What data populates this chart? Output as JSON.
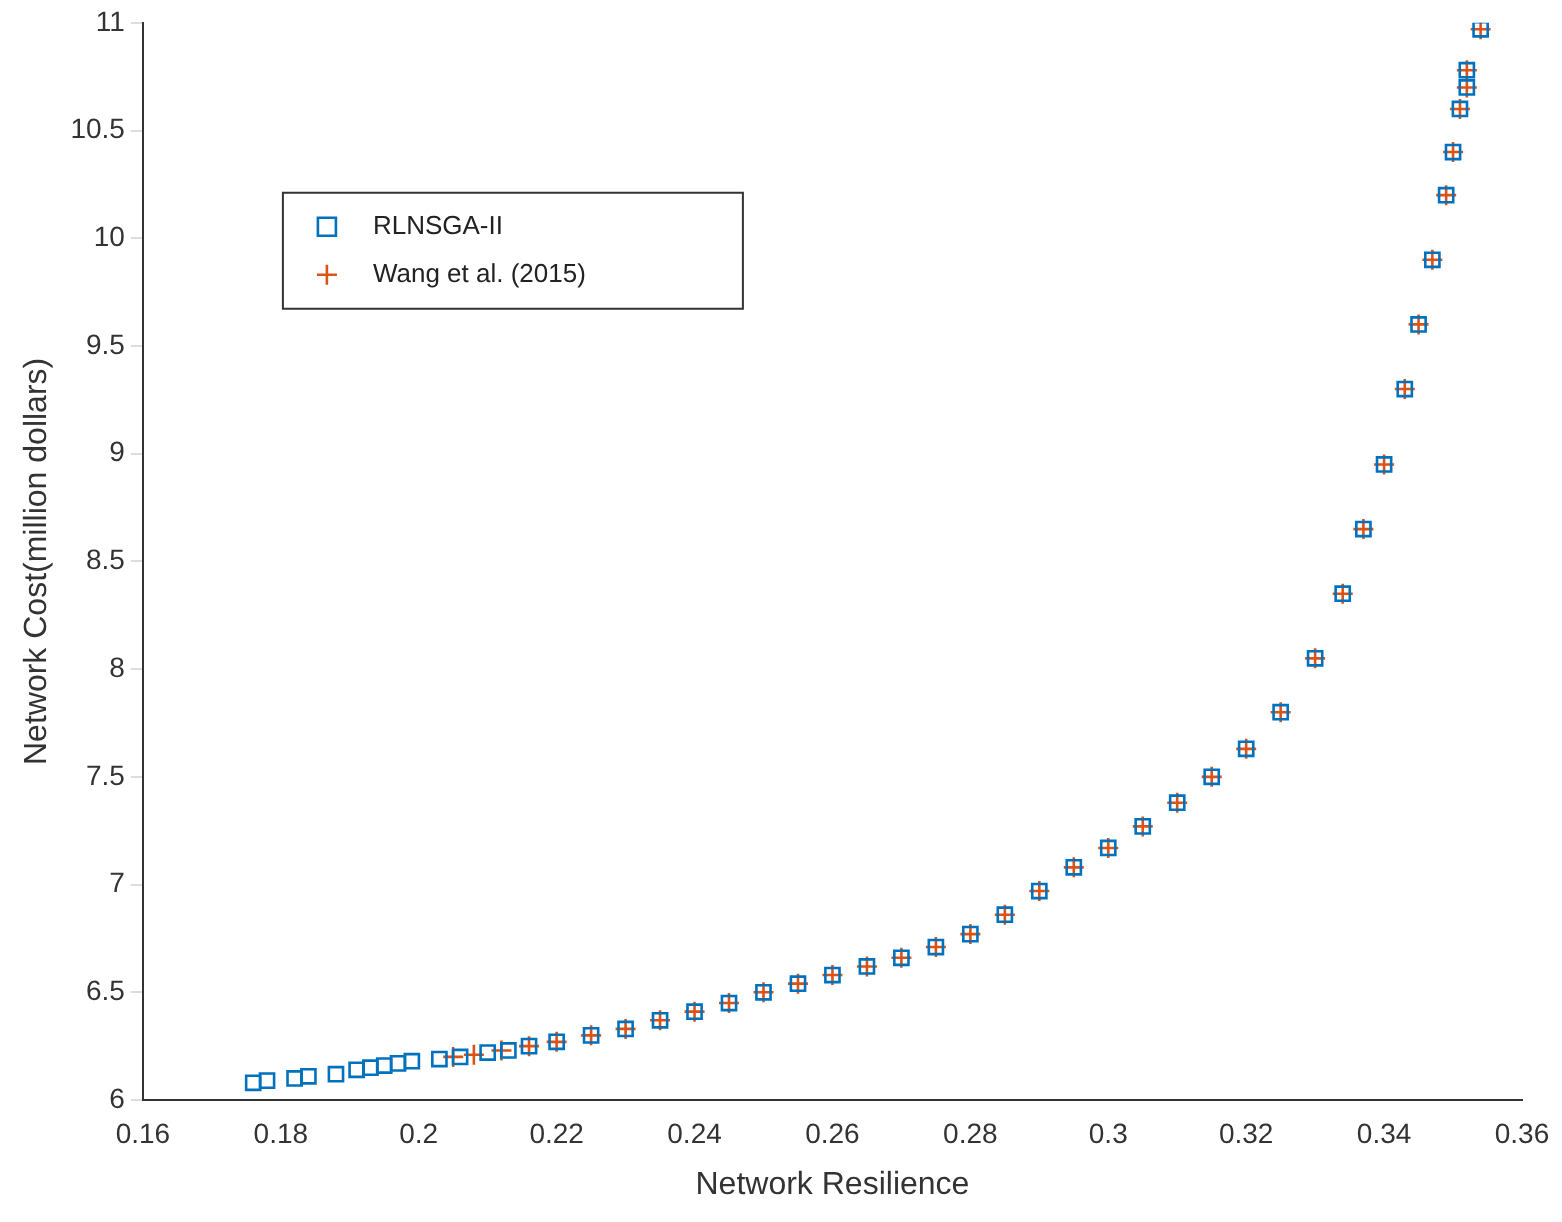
{
  "chart_data": {
    "type": "scatter",
    "xlabel": "Network Resilience",
    "ylabel": "Network Cost(million dollars)",
    "xlim": [
      0.16,
      0.36
    ],
    "xticks": [
      0.16,
      0.18,
      {
        "value": 0.2,
        "label": "0.2"
      },
      0.22,
      0.24,
      0.26,
      0.28,
      {
        "value": 0.3,
        "label": "0.3"
      },
      0.32,
      0.34,
      0.36
    ],
    "ylim": [
      6,
      11
    ],
    "yticks": [
      6,
      6.5,
      7,
      7.5,
      8,
      8.5,
      9,
      9.5,
      10,
      10.5,
      11
    ],
    "grid": false,
    "legend": "top left",
    "series": [
      {
        "name": "RLNSGA-II",
        "color": "#0072bd",
        "marker": "square",
        "x": [
          0.176,
          0.178,
          0.182,
          0.184,
          0.188,
          0.191,
          0.193,
          0.195,
          0.197,
          0.199,
          0.203,
          0.206,
          0.21,
          0.213,
          0.216,
          0.22,
          0.225,
          0.23,
          0.235,
          0.24,
          0.245,
          0.25,
          0.255,
          0.26,
          0.265,
          0.27,
          0.275,
          0.28,
          0.285,
          0.29,
          0.295,
          0.3,
          0.305,
          0.31,
          0.315,
          0.32,
          0.325,
          0.33,
          0.334,
          0.337,
          0.34,
          0.343,
          0.345,
          0.347,
          0.349,
          0.35,
          0.351,
          0.352,
          0.352,
          0.354
        ],
        "values": [
          6.08,
          6.09,
          6.1,
          6.11,
          6.12,
          6.14,
          6.15,
          6.16,
          6.17,
          6.18,
          6.19,
          6.2,
          6.22,
          6.23,
          6.25,
          6.27,
          6.3,
          6.33,
          6.37,
          6.41,
          6.45,
          6.5,
          6.54,
          6.58,
          6.62,
          6.66,
          6.71,
          6.77,
          6.86,
          6.97,
          7.08,
          7.17,
          7.27,
          7.38,
          7.5,
          7.63,
          7.8,
          8.05,
          8.35,
          8.65,
          8.95,
          9.3,
          9.6,
          9.9,
          10.2,
          10.4,
          10.6,
          10.7,
          10.78,
          10.97
        ]
      },
      {
        "name": "Wang et al. (2015)",
        "color": "#d95319",
        "marker": "cross",
        "x": [
          0.205,
          0.208,
          0.212,
          0.216,
          0.22,
          0.225,
          0.23,
          0.235,
          0.24,
          0.245,
          0.25,
          0.255,
          0.26,
          0.265,
          0.27,
          0.275,
          0.28,
          0.285,
          0.29,
          0.295,
          0.3,
          0.305,
          0.31,
          0.315,
          0.32,
          0.325,
          0.33,
          0.334,
          0.337,
          0.34,
          0.343,
          0.345,
          0.347,
          0.349,
          0.35,
          0.351,
          0.352,
          0.352,
          0.354
        ],
        "values": [
          6.2,
          6.21,
          6.23,
          6.25,
          6.27,
          6.3,
          6.33,
          6.37,
          6.41,
          6.45,
          6.5,
          6.54,
          6.58,
          6.62,
          6.66,
          6.71,
          6.77,
          6.86,
          6.97,
          7.08,
          7.17,
          7.27,
          7.38,
          7.5,
          7.63,
          7.8,
          8.05,
          8.35,
          8.65,
          8.95,
          9.3,
          9.6,
          9.9,
          10.2,
          10.4,
          10.6,
          10.7,
          10.78,
          10.97
        ]
      }
    ]
  }
}
